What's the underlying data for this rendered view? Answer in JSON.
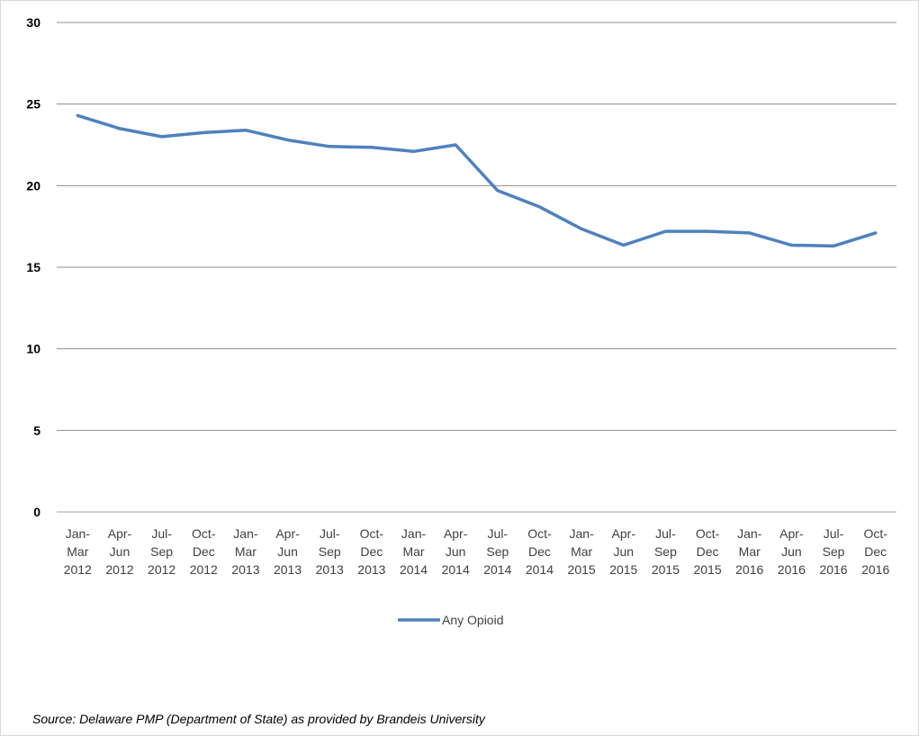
{
  "chart_data": {
    "type": "line",
    "categories": [
      "Jan-Mar 2012",
      "Apr-Jun 2012",
      "Jul-Sep 2012",
      "Oct-Dec 2012",
      "Jan-Mar 2013",
      "Apr-Jun 2013",
      "Jul-Sep 2013",
      "Oct-Dec 2013",
      "Jan-Mar 2014",
      "Apr-Jun 2014",
      "Jul-Sep 2014",
      "Oct-Dec 2014",
      "Jan-Mar 2015",
      "Apr-Jun 2015",
      "Jul-Sep 2015",
      "Oct-Dec 2015",
      "Jan-Mar 2016",
      "Apr-Jun 2016",
      "Jul-Sep 2016",
      "Oct-Dec 2016"
    ],
    "category_lines": [
      [
        "Jan-",
        "Mar",
        "2012"
      ],
      [
        "Apr-",
        "Jun",
        "2012"
      ],
      [
        "Jul-",
        "Sep",
        "2012"
      ],
      [
        "Oct-",
        "Dec",
        "2012"
      ],
      [
        "Jan-",
        "Mar",
        "2013"
      ],
      [
        "Apr-",
        "Jun",
        "2013"
      ],
      [
        "Jul-",
        "Sep",
        "2013"
      ],
      [
        "Oct-",
        "Dec",
        "2013"
      ],
      [
        "Jan-",
        "Mar",
        "2014"
      ],
      [
        "Apr-",
        "Jun",
        "2014"
      ],
      [
        "Jul-",
        "Sep",
        "2014"
      ],
      [
        "Oct-",
        "Dec",
        "2014"
      ],
      [
        "Jan-",
        "Mar",
        "2015"
      ],
      [
        "Apr-",
        "Jun",
        "2015"
      ],
      [
        "Jul-",
        "Sep",
        "2015"
      ],
      [
        "Oct-",
        "Dec",
        "2015"
      ],
      [
        "Jan-",
        "Mar",
        "2016"
      ],
      [
        "Apr-",
        "Jun",
        "2016"
      ],
      [
        "Jul-",
        "Sep",
        "2016"
      ],
      [
        "Oct-",
        "Dec",
        "2016"
      ]
    ],
    "series": [
      {
        "name": "Any Opioid",
        "color": "#4F81BD",
        "values": [
          24.3,
          23.5,
          23.0,
          23.25,
          23.4,
          22.8,
          22.4,
          22.35,
          22.1,
          22.5,
          19.7,
          18.7,
          17.35,
          16.35,
          17.2,
          17.2,
          17.1,
          16.35,
          16.3,
          17.1
        ]
      }
    ],
    "yticks": [
      "0",
      "5",
      "10",
      "15",
      "20",
      "25",
      "30"
    ],
    "ylim": [
      0,
      30
    ],
    "grid": true,
    "legend_position": "bottom"
  },
  "footer": {
    "source": "Source: Delaware PMP (Department of State) as provided by Brandeis University"
  }
}
